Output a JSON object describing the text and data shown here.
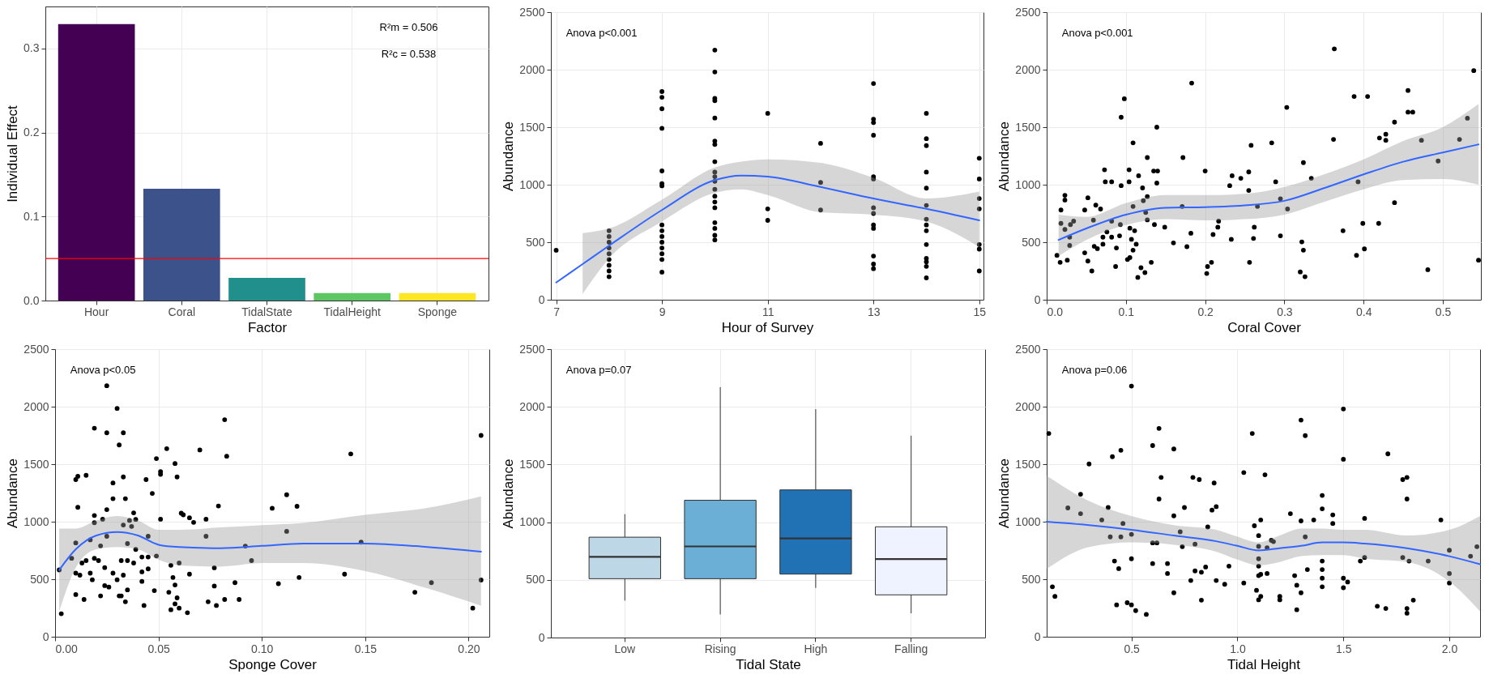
{
  "chart_data": [
    {
      "type": "bar",
      "xlabel": "Factor",
      "ylabel": "Individual Effect",
      "categories": [
        "Hour",
        "Coral",
        "TidalState",
        "TidalHeight",
        "Sponge"
      ],
      "values": [
        0.329,
        0.133,
        0.027,
        0.009,
        0.009
      ],
      "colors": [
        "#440154",
        "#3b528b",
        "#21908c",
        "#5dc863",
        "#fde725"
      ],
      "ylim": [
        0,
        0.35
      ],
      "yticks": [
        {
          "value": 0,
          "label": "0.0"
        },
        0.1,
        0.2,
        0.3
      ],
      "grid": true,
      "ref_lines": [
        {
          "axis": "y",
          "value": 0.05,
          "color": "#ff0000"
        }
      ],
      "annotations": [
        "R²m = 0.506",
        "R²c = 0.538"
      ]
    },
    {
      "type": "scatter",
      "xlabel": "Hour of Survey",
      "ylabel": "Abundance",
      "xlim": [
        6.9,
        15.08
      ],
      "xticks": [
        7,
        9,
        11,
        13,
        15
      ],
      "ylim": [
        0,
        2500
      ],
      "yticks": [
        0,
        500,
        1000,
        1500,
        2000,
        2500
      ],
      "grid": true,
      "annotations": [
        "Anova p<0.001"
      ],
      "series": [
        {
          "type": "scatter",
          "marker": "circle",
          "color": "#000000",
          "x": [
            7,
            8,
            8,
            8,
            8,
            8,
            8,
            8,
            8,
            8,
            9,
            9,
            9,
            9,
            9,
            9,
            9,
            9,
            9,
            9,
            9,
            9,
            9,
            9,
            9,
            10,
            10,
            10,
            10,
            10,
            10,
            10,
            10,
            10,
            10,
            10,
            10,
            10,
            10,
            10,
            10,
            10,
            10,
            10,
            11,
            11,
            11,
            12,
            12,
            12,
            13,
            13,
            13,
            13,
            13,
            13,
            13,
            13,
            13,
            13,
            13,
            13,
            13,
            14,
            14,
            14,
            14,
            14,
            14,
            14,
            14,
            14,
            14,
            14,
            14,
            14,
            14,
            15,
            15,
            15,
            15,
            15,
            15,
            15
          ],
          "values": [
            430,
            600,
            550,
            500,
            450,
            400,
            350,
            300,
            250,
            200,
            1810,
            1760,
            1660,
            1490,
            1120,
            1010,
            990,
            650,
            600,
            550,
            500,
            450,
            400,
            350,
            240,
            2170,
            1980,
            1750,
            1730,
            1580,
            1380,
            1350,
            1200,
            1110,
            1070,
            1030,
            960,
            900,
            850,
            800,
            670,
            620,
            560,
            520,
            1620,
            790,
            690,
            1360,
            1020,
            780,
            1880,
            1570,
            1540,
            1430,
            1070,
            1050,
            800,
            750,
            650,
            620,
            380,
            310,
            270,
            1620,
            1400,
            1340,
            1110,
            970,
            820,
            700,
            650,
            600,
            480,
            360,
            330,
            290,
            190,
            1230,
            1050,
            880,
            790,
            480,
            440,
            250
          ]
        },
        {
          "type": "line",
          "color": "#3366ff",
          "x": [
            7,
            7.5,
            8,
            9,
            10,
            10.5,
            11,
            12,
            13,
            14,
            15
          ],
          "values": [
            150,
            310,
            470,
            780,
            1040,
            1080,
            1070,
            980,
            880,
            790,
            690
          ],
          "lower": [
            null,
            50,
            360,
            680,
            930,
            960,
            910,
            760,
            740,
            680,
            460
          ],
          "upper": [
            null,
            580,
            620,
            870,
            1150,
            1200,
            1220,
            1190,
            1060,
            880,
            940
          ]
        }
      ]
    },
    {
      "type": "scatter",
      "xlabel": "Coral Cover",
      "ylabel": "Abundance",
      "xlim": [
        0,
        0.548
      ],
      "xticks": [
        {
          "value": 0,
          "label": "0.0"
        },
        0.1,
        0.2,
        0.3,
        0.4,
        0.5
      ],
      "ylim": [
        0,
        2500
      ],
      "yticks": [
        0,
        500,
        1000,
        1500,
        2000,
        2500
      ],
      "grid": true,
      "annotations": [
        "Anova p<0.001"
      ],
      "series": [
        {
          "type": "scatter",
          "marker": "circle",
          "color": "#000000",
          "x": [
            0.013,
            0.017,
            0.018,
            0.018,
            0.023,
            0.023,
            0.023,
            0.026,
            0.029,
            0.029,
            0.03,
            0.034,
            0.048,
            0.048,
            0.052,
            0.052,
            0.057,
            0.059,
            0.06,
            0.062,
            0.064,
            0.068,
            0.073,
            0.071,
            0.071,
            0.074,
            0.076,
            0.082,
            0.082,
            0.082,
            0.087,
            0.088,
            0.092,
            0.093,
            0.094,
            0.094,
            0.098,
            0.104,
            0.104,
            0.105,
            0.102,
            0.105,
            0.107,
            0.109,
            0.109,
            0.109,
            0.111,
            0.113,
            0.115,
            0.116,
            0.119,
            0.121,
            0.122,
            0.124,
            0.125,
            0.127,
            0.127,
            0.127,
            0.132,
            0.135,
            0.136,
            0.139,
            0.139,
            0.14,
            0.149,
            0.16,
            0.171,
            0.172,
            0.177,
            0.182,
            0.183,
            0.2,
            0.202,
            0.203,
            0.208,
            0.21,
            0.216,
            0.217,
            0.231,
            0.233,
            0.234,
            0.245,
            0.255,
            0.255,
            0.256,
            0.258,
            0.261,
            0.262,
            0.266,
            0.284,
            0.289,
            0.295,
            0.295,
            0.303,
            0.304,
            0.32,
            0.322,
            0.324,
            0.324,
            0.326,
            0.334,
            0.362,
            0.363,
            0.374,
            0.388,
            0.391,
            0.393,
            0.399,
            0.401,
            0.405,
            0.419,
            0.42,
            0.428,
            0.428,
            0.439,
            0.439,
            0.456,
            0.456,
            0.462,
            0.473,
            0.481,
            0.494,
            0.521,
            0.531,
            0.539,
            0.545
          ],
          "values": [
            386,
            325,
            780,
            664,
            908,
            867,
            611,
            344,
            544,
            472,
            653,
            683,
            780,
            408,
            886,
            336,
            250,
            692,
            464,
            822,
            444,
            789,
            1130,
            544,
            483,
            1025,
            589,
            1025,
            683,
            544,
            289,
            450,
            556,
            653,
            1586,
            992,
            1747,
            1130,
            1025,
            622,
            350,
            367,
            525,
            1364,
            811,
            431,
            600,
            483,
            194,
            1078,
            278,
            972,
            861,
            236,
            758,
            897,
            1236,
            694,
            325,
            1119,
            653,
            1500,
            1014,
            1119,
            631,
            494,
            811,
            1236,
            461,
            578,
            1883,
            1119,
            228,
            289,
            325,
            567,
            631,
            683,
            992,
            525,
            1078,
            1056,
            1111,
            950,
            325,
            1342,
            533,
            631,
            811,
            1364,
            1025,
            556,
            878,
            1672,
            789,
            242,
            503,
            1192,
            431,
            200,
            1056,
            1394,
            2181,
            600,
            1767,
            386,
            1025,
            664,
            442,
            1767,
            664,
            1406,
            1439,
            1386,
            1544,
            844,
            1819,
            1631,
            1631,
            1386,
            261,
            1206,
            1394,
            1578,
            1992,
            344
          ]
        },
        {
          "type": "line",
          "color": "#3366ff",
          "x": [
            0.015,
            0.05,
            0.1,
            0.15,
            0.2,
            0.25,
            0.3,
            0.35,
            0.4,
            0.45,
            0.5,
            0.545
          ],
          "values": [
            520,
            620,
            740,
            800,
            805,
            820,
            860,
            970,
            1090,
            1200,
            1280,
            1350
          ],
          "lower": [
            380,
            520,
            650,
            700,
            690,
            700,
            740,
            850,
            960,
            1040,
            1050,
            1000
          ],
          "upper": [
            740,
            720,
            840,
            910,
            910,
            920,
            980,
            1090,
            1220,
            1380,
            1500,
            1700
          ]
        }
      ]
    },
    {
      "type": "scatter",
      "xlabel": "Sponge Cover",
      "ylabel": "Abundance",
      "xlim": [
        0,
        0.21
      ],
      "xticks": [
        {
          "value": 0,
          "label": "0.00"
        },
        0.05,
        {
          "value": 0.1,
          "label": "0.10"
        },
        0.15,
        {
          "value": 0.2,
          "label": "0.20"
        }
      ],
      "ylim": [
        0,
        2500
      ],
      "yticks": [
        0,
        500,
        1000,
        1500,
        2000,
        2500
      ],
      "grid": true,
      "annotations": [
        "Anova p<0.05"
      ],
      "series": [
        {
          "type": "scatter",
          "marker": "circle",
          "color": "#000000",
          "x": [
            0.002,
            0.003,
            0.008,
            0.01,
            0.01,
            0.011,
            0.011,
            0.01,
            0.01,
            0.012,
            0.013,
            0.014,
            0.015,
            0.015,
            0.017,
            0.017,
            0.018,
            0.019,
            0.019,
            0.019,
            0.019,
            0.021,
            0.022,
            0.022,
            0.023,
            0.024,
            0.024,
            0.025,
            0.025,
            0.025,
            0.025,
            0.026,
            0.028,
            0.028,
            0.028,
            0.03,
            0.03,
            0.031,
            0.031,
            0.032,
            0.032,
            0.033,
            0.033,
            0.033,
            0.033,
            0.034,
            0.034,
            0.035,
            0.035,
            0.035,
            0.036,
            0.037,
            0.038,
            0.038,
            0.039,
            0.039,
            0.042,
            0.042,
            0.042,
            0.043,
            0.044,
            0.045,
            0.045,
            0.045,
            0.047,
            0.048,
            0.049,
            0.049,
            0.051,
            0.051,
            0.051,
            0.054,
            0.055,
            0.056,
            0.056,
            0.057,
            0.058,
            0.058,
            0.058,
            0.059,
            0.059,
            0.06,
            0.06,
            0.061,
            0.062,
            0.064,
            0.065,
            0.065,
            0.067,
            0.07,
            0.073,
            0.073,
            0.074,
            0.077,
            0.077,
            0.078,
            0.079,
            0.082,
            0.082,
            0.083,
            0.087,
            0.089,
            0.092,
            0.095,
            0.105,
            0.108,
            0.112,
            0.112,
            0.117,
            0.118,
            0.14,
            0.143,
            0.148,
            0.174,
            0.182,
            0.202,
            0.206,
            0.206
          ],
          "values": [
            581,
            200,
            682,
            816,
            1366,
            1395,
            1125,
            553,
            367,
            535,
            641,
            324,
            662,
            1403,
            842,
            553,
            495,
            991,
            1054,
            1813,
            682,
            662,
            790,
            355,
            1022,
            601,
            444,
            1105,
            873,
            2182,
            1773,
            432,
            553,
            1337,
            1200,
            1985,
            495,
            1667,
            355,
            662,
            355,
            1773,
            1389,
            535,
            971,
            1200,
            304,
            407,
            810,
            662,
            1011,
            959,
            641,
            1077,
            1020,
            759,
            693,
            481,
            564,
            272,
            1366,
            873,
            693,
            590,
            1246,
            401,
            1549,
            702,
            1022,
            1435,
            1412,
            1635,
            387,
            235,
            621,
            515,
            286,
            1506,
            450,
            1389,
            338,
            249,
            641,
            1074,
            1060,
            209,
            1034,
            544,
            994,
            1624,
            1022,
            873,
            304,
            599,
            441,
            272,
            1137,
            1887,
            324,
            1569,
            470,
            324,
            788,
            662,
            1117,
            461,
            1234,
            916,
            1134,
            515,
            544,
            1589,
            822,
            387,
            470,
            249,
            1750,
            493
          ]
        },
        {
          "type": "line",
          "color": "#3366ff",
          "x": [
            0.002,
            0.01,
            0.02,
            0.03,
            0.04,
            0.05,
            0.06,
            0.08,
            0.1,
            0.12,
            0.15,
            0.18,
            0.206
          ],
          "values": [
            580,
            760,
            880,
            910,
            880,
            800,
            780,
            770,
            790,
            810,
            810,
            780,
            740
          ],
          "lower": [
            220,
            600,
            760,
            780,
            760,
            670,
            620,
            610,
            640,
            640,
            570,
            420,
            270
          ],
          "upper": [
            940,
            940,
            1010,
            1050,
            1010,
            930,
            930,
            950,
            970,
            990,
            1060,
            1120,
            1220
          ]
        }
      ]
    },
    {
      "type": "box",
      "xlabel": "Tidal State",
      "ylabel": "Abundance",
      "categories": [
        "Low",
        "Rising",
        "High",
        "Falling"
      ],
      "colors": [
        "#bdd7e7",
        "#6baed6",
        "#2171b5",
        "#eff3ff"
      ],
      "ylim": [
        0,
        2500
      ],
      "yticks": [
        0,
        500,
        1000,
        1500,
        2000,
        2500
      ],
      "grid": true,
      "annotations": [
        "Anova p=0.07"
      ],
      "boxes": [
        {
          "low": 320,
          "q1": 510,
          "median": 700,
          "q3": 870,
          "high": 1070
        },
        {
          "low": 200,
          "q1": 510,
          "median": 790,
          "q3": 1190,
          "high": 2170
        },
        {
          "low": 430,
          "q1": 550,
          "median": 860,
          "q3": 1280,
          "high": 1980
        },
        {
          "low": 210,
          "q1": 370,
          "median": 680,
          "q3": 960,
          "high": 1750
        }
      ]
    },
    {
      "type": "scatter",
      "xlabel": "Tidal Height",
      "ylabel": "Abundance",
      "xlim": [
        0.1,
        2.145
      ],
      "xticks": [
        0.5,
        {
          "value": 1,
          "label": "1.0"
        },
        1.5,
        {
          "value": 2,
          "label": "2.0"
        }
      ],
      "ylim": [
        0,
        2500
      ],
      "yticks": [
        0,
        500,
        1000,
        1500,
        2000,
        2500
      ],
      "grid": true,
      "annotations": [
        "Anova p=0.06"
      ],
      "series": [
        {
          "type": "scatter",
          "marker": "circle",
          "color": "#000000",
          "x": [
            0.11,
            0.127,
            0.139,
            0.2,
            0.26,
            0.26,
            0.3,
            0.36,
            0.39,
            0.4,
            0.41,
            0.42,
            0.43,
            0.44,
            0.45,
            0.45,
            0.46,
            0.48,
            0.5,
            0.5,
            0.5,
            0.5,
            0.52,
            0.57,
            0.6,
            0.6,
            0.6,
            0.62,
            0.63,
            0.63,
            0.64,
            0.67,
            0.67,
            0.7,
            0.7,
            0.7,
            0.73,
            0.74,
            0.75,
            0.78,
            0.79,
            0.8,
            0.8,
            0.82,
            0.83,
            0.83,
            0.85,
            0.86,
            0.88,
            0.89,
            0.9,
            0.9,
            0.94,
            0.96,
            1.03,
            1.03,
            1.07,
            1.08,
            1.09,
            1.1,
            1.1,
            1.1,
            1.1,
            1.1,
            1.1,
            1.11,
            1.11,
            1.11,
            1.13,
            1.14,
            1.14,
            1.16,
            1.17,
            1.2,
            1.2,
            1.25,
            1.27,
            1.28,
            1.28,
            1.3,
            1.3,
            1.3,
            1.32,
            1.32,
            1.33,
            1.36,
            1.4,
            1.4,
            1.4,
            1.4,
            1.4,
            1.4,
            1.45,
            1.45,
            1.5,
            1.5,
            1.5,
            1.5,
            1.52,
            1.58,
            1.6,
            1.6,
            1.66,
            1.7,
            1.71,
            1.78,
            1.78,
            1.8,
            1.8,
            1.8,
            1.8,
            1.81,
            1.83,
            1.9,
            1.96,
            2,
            2,
            2,
            2.1,
            2.13
          ],
          "values": [
            1767,
            434,
            351,
            1120,
            1239,
            1070,
            1502,
            1015,
            1123,
            868,
            1565,
            658,
            277,
            592,
            1621,
            868,
            985,
            296,
            2179,
            890,
            678,
            277,
            227,
            194,
            1662,
            816,
            636,
            816,
            1811,
            1197,
            1385,
            636,
            550,
            1632,
            1051,
            382,
            912,
            783,
            1123,
            489,
            1385,
            805,
            572,
            1366,
            318,
            561,
            606,
            954,
            1101,
            1336,
            1131,
            489,
            456,
            614,
            1427,
            467,
            1767,
            965,
            404,
            879,
            785,
            678,
            614,
            531,
            321,
            1015,
            542,
            351,
            1408,
            774,
            550,
            838,
            827,
            321,
            351,
            1070,
            531,
            448,
            235,
            1883,
            1007,
            382,
            1748,
            868,
            584,
            1015,
            1228,
            1112,
            658,
            584,
            509,
            434,
            1059,
            985,
            1980,
            1543,
            509,
            426,
            476,
            658,
            1029,
            689,
            265,
            246,
            1590,
            1366,
            689,
            1385,
            1197,
            246,
            205,
            658,
            318,
            658,
            1015,
            752,
            550,
            467,
            700,
            783
          ]
        },
        {
          "type": "line",
          "color": "#3366ff",
          "x": [
            0.1,
            0.3,
            0.5,
            0.7,
            0.9,
            1,
            1.1,
            1.2,
            1.3,
            1.4,
            1.5,
            1.6,
            1.8,
            2,
            2.145
          ],
          "values": [
            1000,
            970,
            930,
            880,
            830,
            790,
            750,
            770,
            790,
            820,
            820,
            810,
            770,
            700,
            630
          ],
          "lower": [
            590,
            780,
            820,
            800,
            740,
            670,
            620,
            650,
            700,
            710,
            710,
            680,
            650,
            480,
            220
          ],
          "upper": [
            1400,
            1180,
            1050,
            970,
            930,
            870,
            820,
            880,
            940,
            940,
            930,
            930,
            880,
            930,
            1050
          ]
        }
      ]
    }
  ]
}
